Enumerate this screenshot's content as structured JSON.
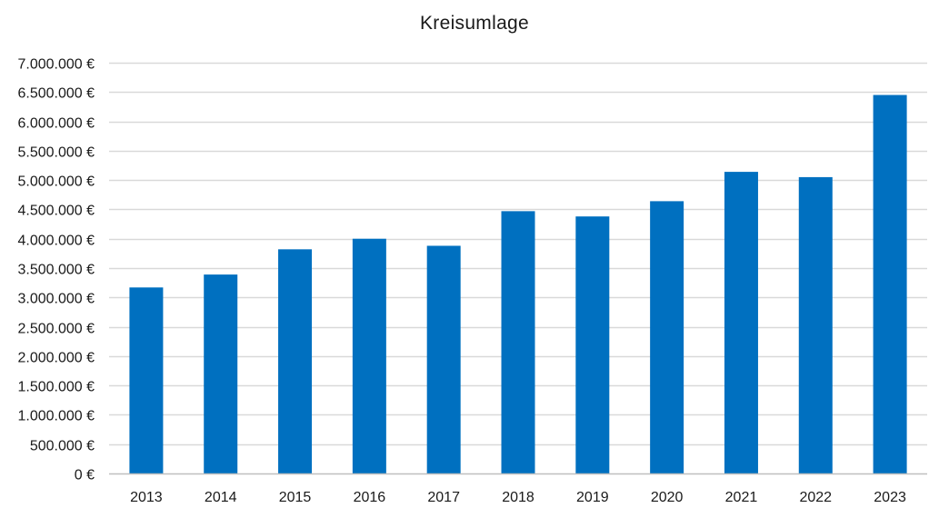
{
  "chart_data": {
    "type": "bar",
    "title": "Kreisumlage",
    "xlabel": "",
    "ylabel": "",
    "categories": [
      "2013",
      "2014",
      "2015",
      "2016",
      "2017",
      "2018",
      "2019",
      "2020",
      "2021",
      "2022",
      "2023"
    ],
    "values": [
      3170000,
      3390000,
      3820000,
      4000000,
      3880000,
      4470000,
      4380000,
      4640000,
      5140000,
      5050000,
      6450000
    ],
    "ylim": [
      0,
      7000000
    ],
    "yticks": [
      0,
      500000,
      1000000,
      1500000,
      2000000,
      2500000,
      3000000,
      3500000,
      4000000,
      4500000,
      5000000,
      5500000,
      6000000,
      6500000,
      7000000
    ],
    "ytick_labels": [
      "0 €",
      "500.000 €",
      "1.000.000 €",
      "1.500.000 €",
      "2.000.000 €",
      "2.500.000 €",
      "3.000.000 €",
      "3.500.000 €",
      "4.000.000 €",
      "4.500.000 €",
      "5.000.000 €",
      "5.500.000 €",
      "6.000.000 €",
      "6.500.000 €",
      "7.000.000 €"
    ],
    "grid": true,
    "legend": "none",
    "colors": {
      "bar": "#0070c0",
      "grid": "#d9d9d9",
      "axis": "#bfbfbf",
      "text": "#1a1a1a"
    }
  }
}
